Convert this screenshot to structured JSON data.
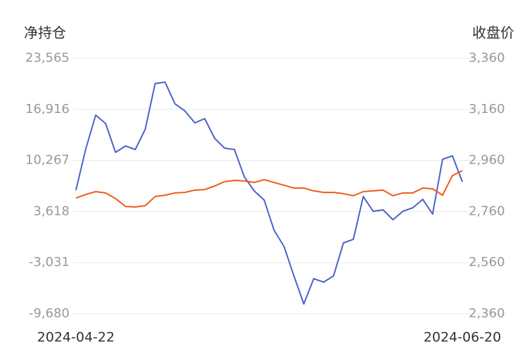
{
  "chart_data": {
    "type": "line",
    "y_label": "净持仓",
    "y2_label": "收盘价",
    "categories": [
      "2024-04-22",
      null,
      null,
      null,
      null,
      null,
      null,
      null,
      null,
      null,
      null,
      null,
      null,
      null,
      null,
      null,
      null,
      null,
      null,
      null,
      null,
      null,
      null,
      null,
      null,
      null,
      null,
      null,
      null,
      null,
      null,
      null,
      null,
      null,
      null,
      null,
      null,
      null,
      null,
      "2024-06-20"
    ],
    "series": [
      {
        "name": "净持仓",
        "color": "#4a63c8",
        "values": [
          6395,
          11783,
          16167,
          15071,
          11327,
          12149,
          11692,
          14341,
          20277,
          20460,
          17629,
          16715,
          15163,
          15711,
          13153,
          11875,
          11692,
          8130,
          6304,
          5116,
          1189,
          -911,
          -4747,
          -8401,
          -5113,
          -5569,
          -4747,
          -455,
          2,
          5573,
          3655,
          3838,
          2559,
          3655,
          4112,
          5208,
          3290,
          10413,
          10870,
          7491
        ]
      },
      {
        "name": "收盘价",
        "color": "#f05a16",
        "axis": "y2",
        "values": [
          2813,
          2827,
          2838,
          2833,
          2811,
          2780,
          2778,
          2783,
          2819,
          2824,
          2833,
          2835,
          2844,
          2846,
          2860,
          2877,
          2882,
          2880,
          2874,
          2885,
          2874,
          2863,
          2852,
          2852,
          2841,
          2835,
          2835,
          2830,
          2822,
          2838,
          2841,
          2844,
          2822,
          2833,
          2833,
          2852,
          2849,
          2824,
          2901,
          2920
        ]
      }
    ],
    "ylim": [
      -9680,
      23565
    ],
    "yticks": [
      {
        "value": -9680,
        "label": "-9,680"
      },
      {
        "value": -3031,
        "label": "-3,031"
      },
      {
        "value": 3618,
        "label": "3,618"
      },
      {
        "value": 10267,
        "label": "10,267"
      },
      {
        "value": 16916,
        "label": "16,916"
      },
      {
        "value": 23565,
        "label": "23,565"
      }
    ],
    "y2lim": [
      2360,
      3360
    ],
    "y2ticks": [
      {
        "value": 2360,
        "label": "2,360"
      },
      {
        "value": 2560,
        "label": "2,560"
      },
      {
        "value": 2760,
        "label": "2,760"
      },
      {
        "value": 2960,
        "label": "2,960"
      },
      {
        "value": 3160,
        "label": "3,160"
      },
      {
        "value": 3360,
        "label": "3,360"
      }
    ],
    "grid": true
  }
}
